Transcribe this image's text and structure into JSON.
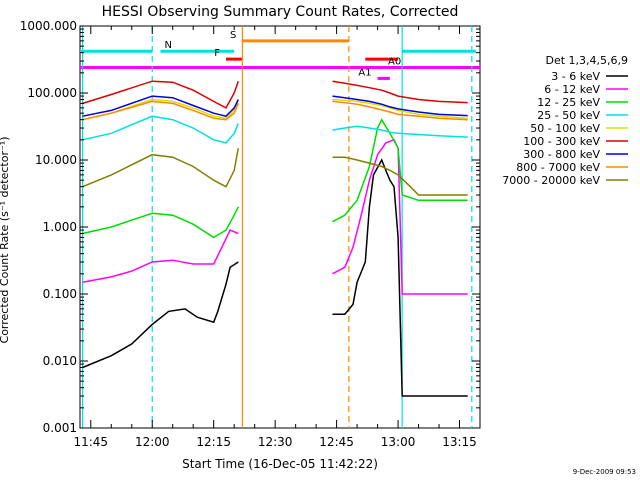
{
  "chart_data": {
    "type": "line",
    "title": "HESSI Observing Summary Count Rates, Corrected",
    "xlabel": "Start Time (16-Dec-05 11:42:22)",
    "ylabel": "Corrected Count Rate (s⁻¹ detector⁻¹)",
    "yscale": "log",
    "ylim": [
      0.001,
      1000
    ],
    "xlim": [
      "11:42:22",
      "13:20:00"
    ],
    "x_ticks": [
      "11:45",
      "12:00",
      "12:15",
      "12:30",
      "12:45",
      "13:00",
      "13:15"
    ],
    "y_ticks": [
      "0.001",
      "0.010",
      "0.100",
      "1.000",
      "10.000",
      "100.000",
      "1000.000"
    ],
    "legend_title": "Det 1,3,4,5,6,9",
    "legend_position": "right",
    "footer_date": "9-Dec-2009 09:53",
    "series": [
      {
        "name": "3 - 6 keV",
        "color": "#000000",
        "segments": [
          {
            "t": [
              "11:43",
              "11:50",
              "11:55",
              "12:00",
              "12:04",
              "12:08",
              "12:11",
              "12:15",
              "12:16",
              "12:18",
              "12:19",
              "12:21"
            ],
            "v": [
              0.008,
              0.012,
              0.018,
              0.035,
              0.055,
              0.06,
              0.045,
              0.038,
              0.055,
              0.14,
              0.25,
              0.3
            ]
          },
          {
            "t": [
              "12:44",
              "12:47",
              "12:49",
              "12:50",
              "12:52",
              "12:53",
              "12:54",
              "12:56",
              "12:57",
              "12:58",
              "12:59",
              "13:00",
              "13:01",
              "13:06",
              "13:10",
              "13:17"
            ],
            "v": [
              0.05,
              0.05,
              0.07,
              0.15,
              0.3,
              2,
              6,
              10,
              7,
              5,
              4,
              0.7,
              0.003,
              0.003,
              0.003,
              0.003
            ]
          }
        ]
      },
      {
        "name": "6 - 12 keV",
        "color": "#ff00ff",
        "segments": [
          {
            "t": [
              "11:43",
              "11:50",
              "11:55",
              "12:00",
              "12:05",
              "12:10",
              "12:15",
              "12:17",
              "12:19",
              "12:21"
            ],
            "v": [
              0.15,
              0.18,
              0.22,
              0.3,
              0.32,
              0.28,
              0.28,
              0.5,
              0.9,
              0.8
            ]
          },
          {
            "t": [
              "12:44",
              "12:47",
              "12:49",
              "12:51",
              "12:53",
              "12:55",
              "12:57",
              "12:59",
              "13:00",
              "13:01",
              "13:05",
              "13:10",
              "13:17"
            ],
            "v": [
              0.2,
              0.25,
              0.5,
              1.5,
              5,
              12,
              18,
              20,
              15,
              0.1,
              0.1,
              0.1,
              0.1
            ]
          }
        ]
      },
      {
        "name": "12 - 25 keV",
        "color": "#00dd00",
        "segments": [
          {
            "t": [
              "11:43",
              "11:50",
              "12:00",
              "12:05",
              "12:10",
              "12:15",
              "12:18",
              "12:20",
              "12:21"
            ],
            "v": [
              0.8,
              1,
              1.6,
              1.5,
              1.1,
              0.7,
              0.9,
              1.5,
              2
            ]
          },
          {
            "t": [
              "12:44",
              "12:47",
              "12:50",
              "12:53",
              "12:55",
              "12:56",
              "12:58",
              "13:00",
              "13:01",
              "13:05",
              "13:10",
              "13:17"
            ],
            "v": [
              1.2,
              1.5,
              2.5,
              8,
              30,
              40,
              25,
              15,
              3,
              2.5,
              2.5,
              2.5
            ]
          }
        ]
      },
      {
        "name": "25 - 50 keV",
        "color": "#00e0e0",
        "segments": [
          {
            "t": [
              "11:43",
              "11:50",
              "12:00",
              "12:05",
              "12:10",
              "12:15",
              "12:18",
              "12:20",
              "12:21"
            ],
            "v": [
              20,
              25,
              45,
              40,
              30,
              20,
              18,
              25,
              35
            ]
          },
          {
            "t": [
              "12:44",
              "12:47",
              "12:50",
              "12:53",
              "12:56",
              "12:58",
              "13:00",
              "13:05",
              "13:10",
              "13:17"
            ],
            "v": [
              28,
              30,
              32,
              30,
              28,
              26,
              25,
              24,
              23,
              22
            ]
          }
        ]
      },
      {
        "name": "50 - 100 keV",
        "color": "#dddd00",
        "segments": [
          {
            "t": [
              "11:43",
              "11:50",
              "12:00",
              "12:05",
              "12:10",
              "12:15",
              "12:18",
              "12:20",
              "12:21"
            ],
            "v": [
              40,
              50,
              80,
              75,
              60,
              45,
              42,
              55,
              75
            ]
          },
          {
            "t": [
              "12:44",
              "12:47",
              "12:50",
              "12:53",
              "12:56",
              "12:58",
              "13:00",
              "13:05",
              "13:10",
              "13:17"
            ],
            "v": [
              80,
              78,
              75,
              70,
              65,
              60,
              55,
              48,
              45,
              42
            ]
          }
        ]
      },
      {
        "name": "100 - 300 keV",
        "color": "#dd0000",
        "segments": [
          {
            "t": [
              "11:43",
              "11:50",
              "12:00",
              "12:05",
              "12:10",
              "12:15",
              "12:18",
              "12:20",
              "12:21"
            ],
            "v": [
              70,
              95,
              150,
              145,
              110,
              75,
              60,
              100,
              150
            ]
          },
          {
            "t": [
              "12:44",
              "12:47",
              "12:50",
              "12:53",
              "12:56",
              "12:58",
              "13:00",
              "13:05",
              "13:10",
              "13:17"
            ],
            "v": [
              150,
              140,
              130,
              120,
              110,
              100,
              90,
              80,
              75,
              72
            ]
          }
        ]
      },
      {
        "name": "300 - 800 keV",
        "color": "#0000dd",
        "segments": [
          {
            "t": [
              "11:43",
              "11:50",
              "12:00",
              "12:05",
              "12:10",
              "12:15",
              "12:18",
              "12:20",
              "12:21"
            ],
            "v": [
              45,
              55,
              90,
              85,
              65,
              50,
              45,
              60,
              80
            ]
          },
          {
            "t": [
              "12:44",
              "12:47",
              "12:50",
              "12:53",
              "12:56",
              "12:58",
              "13:00",
              "13:05",
              "13:10",
              "13:17"
            ],
            "v": [
              90,
              85,
              80,
              75,
              68,
              62,
              58,
              52,
              48,
              46
            ]
          }
        ]
      },
      {
        "name": "800 - 7000 keV",
        "color": "#ff8800",
        "segments": [
          {
            "t": [
              "11:43",
              "11:50",
              "12:00",
              "12:05",
              "12:10",
              "12:15",
              "12:18",
              "12:20",
              "12:21"
            ],
            "v": [
              40,
              50,
              75,
              70,
              55,
              42,
              40,
              50,
              70
            ]
          },
          {
            "t": [
              "12:44",
              "12:47",
              "12:50",
              "12:53",
              "12:56",
              "12:58",
              "13:00",
              "13:05",
              "13:10",
              "13:17"
            ],
            "v": [
              75,
              72,
              68,
              62,
              56,
              52,
              48,
              45,
              42,
              40
            ]
          }
        ]
      },
      {
        "name": "7000 - 20000 keV",
        "color": "#808000",
        "segments": [
          {
            "t": [
              "11:43",
              "11:50",
              "12:00",
              "12:05",
              "12:10",
              "12:15",
              "12:18",
              "12:20",
              "12:21"
            ],
            "v": [
              4,
              6,
              12,
              11,
              8,
              5,
              4,
              7,
              15
            ]
          },
          {
            "t": [
              "12:44",
              "12:47",
              "12:50",
              "12:53",
              "12:56",
              "12:58",
              "13:00",
              "13:03",
              "13:05",
              "13:10",
              "13:17"
            ],
            "v": [
              11,
              11,
              10,
              9,
              8,
              7,
              6,
              4,
              3,
              3,
              3
            ]
          }
        ]
      }
    ],
    "time_bands": [
      {
        "label": "N",
        "color": "#00e0e0",
        "y": 420,
        "ranges": [
          [
            "11:42:22",
            "12:00"
          ],
          [
            "12:02",
            "12:20"
          ],
          [
            "13:01",
            "13:19"
          ]
        ]
      },
      {
        "label": "S",
        "color": "#ff8800",
        "y": 600,
        "ranges": [
          [
            "12:22",
            "12:48"
          ]
        ]
      },
      {
        "label": "F",
        "color": "#ff0000",
        "y": 320,
        "ranges": [
          [
            "12:18",
            "12:22"
          ],
          [
            "12:52",
            "13:00"
          ]
        ]
      },
      {
        "label": "A0",
        "color": "#ff00ff",
        "y": 240,
        "ranges": [
          [
            "11:42:22",
            "13:20"
          ]
        ]
      },
      {
        "label": "A1",
        "color": "#ff00ff",
        "y": 165,
        "ranges": [
          [
            "12:55",
            "12:58"
          ]
        ]
      }
    ],
    "vertical_markers": [
      {
        "time": "11:43",
        "color": "#00e0e0",
        "style": "solid"
      },
      {
        "time": "12:00",
        "color": "#00e0e0",
        "style": "dashed"
      },
      {
        "time": "12:22",
        "color": "#ff8800",
        "style": "solid"
      },
      {
        "time": "12:48",
        "color": "#ff8800",
        "style": "dashed"
      },
      {
        "time": "13:01",
        "color": "#00e0e0",
        "style": "solid"
      },
      {
        "time": "13:18",
        "color": "#00e0e0",
        "style": "dashed"
      }
    ]
  }
}
